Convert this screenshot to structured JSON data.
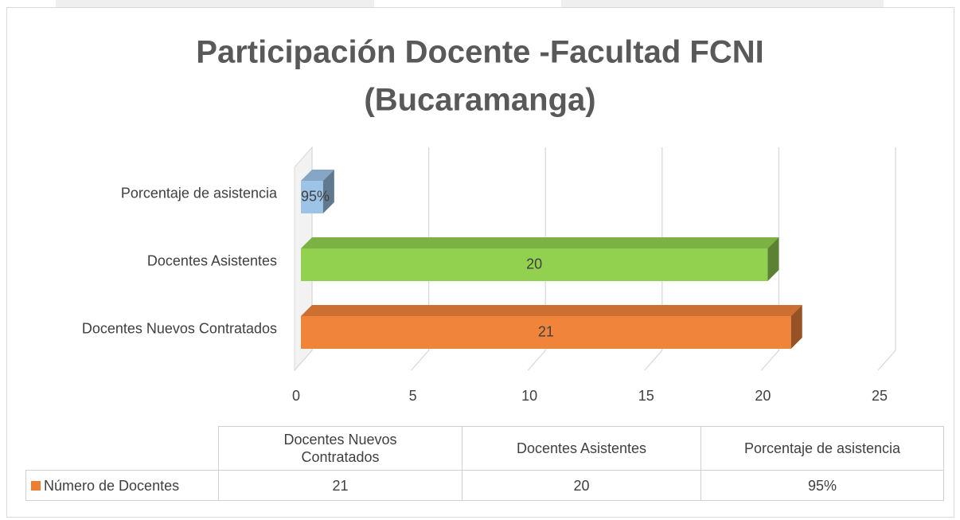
{
  "chart_data": {
    "type": "bar3d_horizontal",
    "title": [
      "Participación  Docente -Facultad FCNI",
      "(Bucaramanga)"
    ],
    "categories": [
      "Docentes Nuevos Contratados",
      "Docentes Asistentes",
      "Porcentaje de asistencia"
    ],
    "series": [
      {
        "name": "Número de Docentes",
        "color": "#ed7d31",
        "point_colors": [
          "#f0843a",
          "#92d050",
          "#9dc3e6"
        ],
        "values": [
          21,
          20,
          0.95
        ],
        "value_labels": [
          "21",
          "20",
          "95%"
        ]
      }
    ],
    "xlim": [
      0,
      25
    ],
    "xticks": [
      0,
      5,
      10,
      15,
      20,
      25
    ],
    "grid": true,
    "data_table": true
  }
}
